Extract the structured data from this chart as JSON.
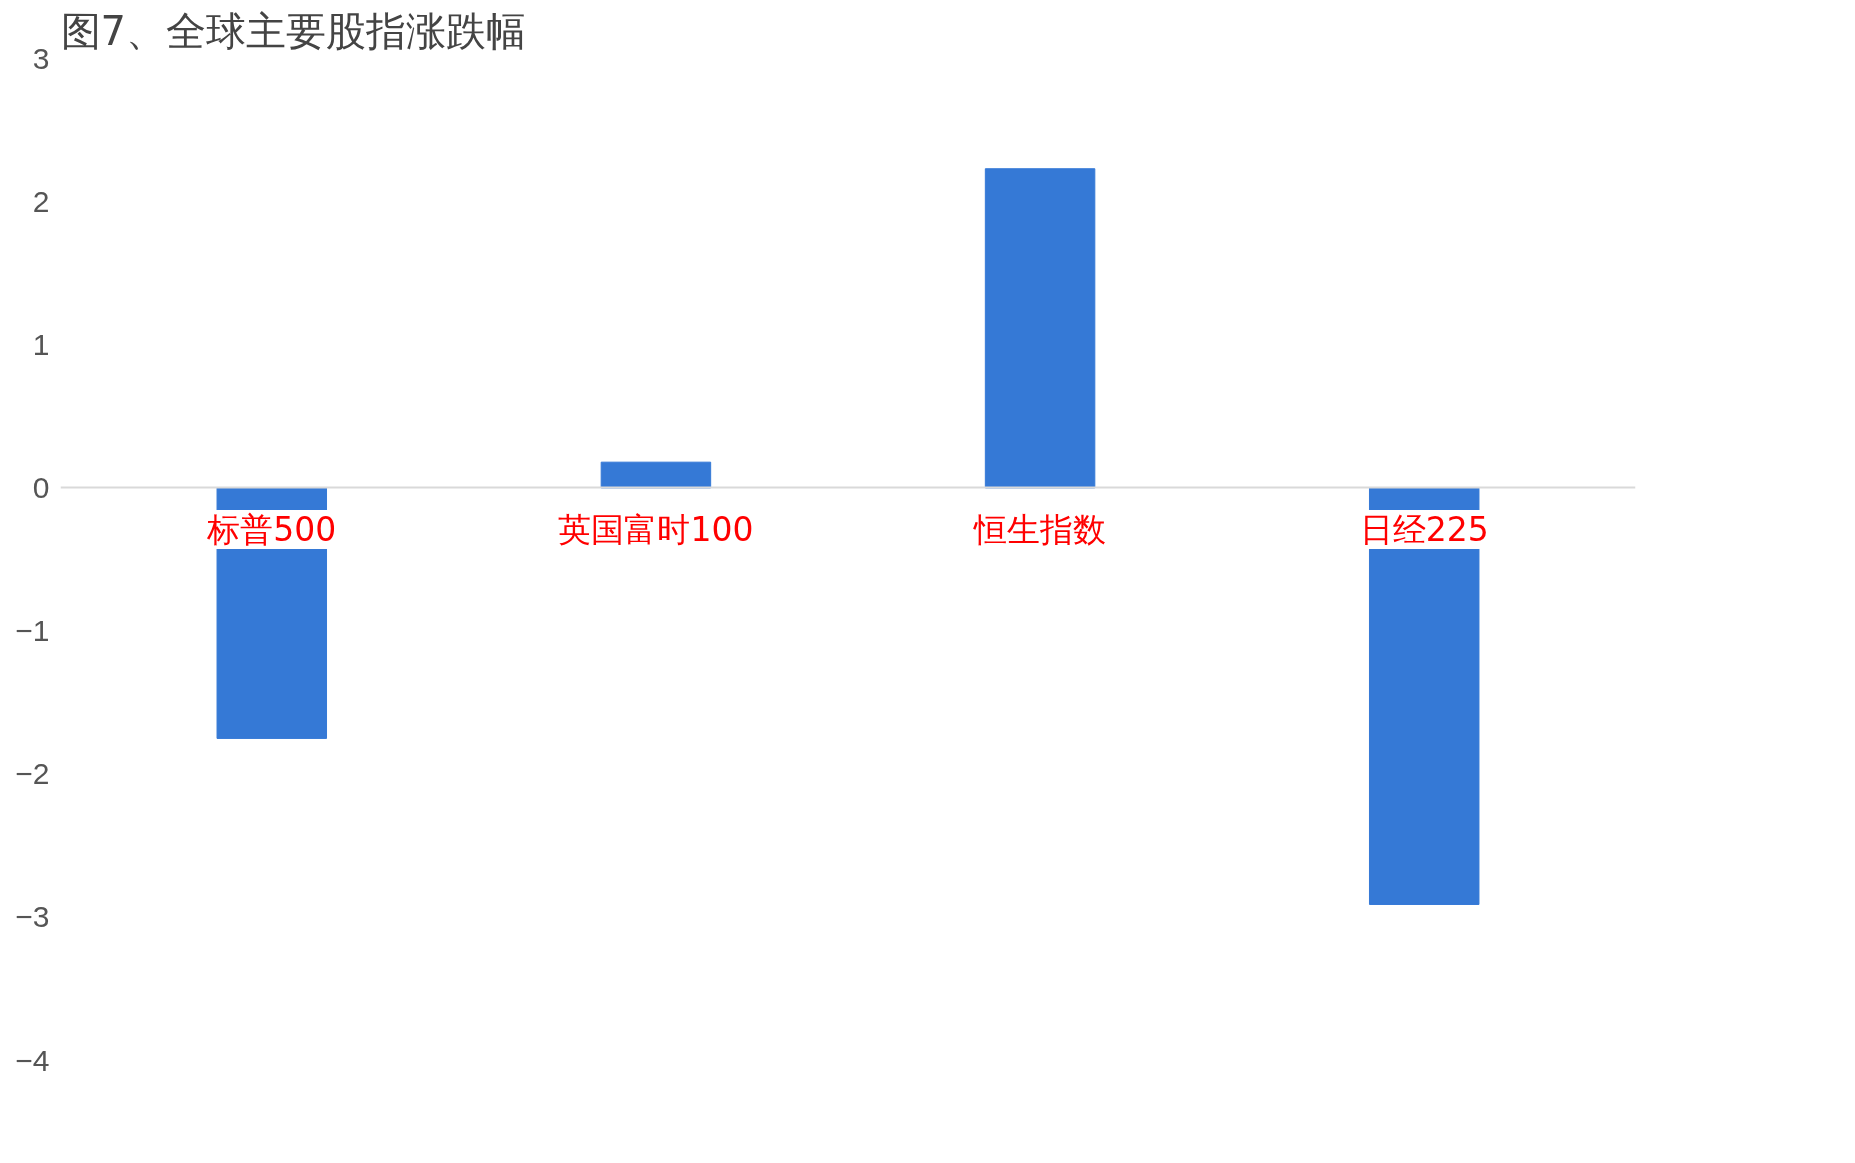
{
  "chart_data": {
    "type": "bar",
    "title": "图7、全球主要股指涨跌幅",
    "categories": [
      "标普500",
      "英国富时100",
      "恒生指数",
      "日经225"
    ],
    "values": [
      -1.75,
      0.18,
      2.23,
      -2.91
    ],
    "color": "#3579d6",
    "ylim": [
      -4,
      3
    ],
    "yticks": [
      -4,
      -3,
      -2,
      -1,
      0,
      1,
      2,
      3
    ],
    "grid": false
  }
}
